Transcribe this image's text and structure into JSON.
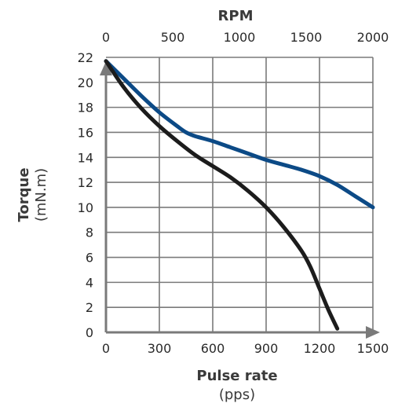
{
  "chart_data": {
    "type": "line",
    "top_axis": {
      "title": "RPM",
      "ticks": [
        "0",
        "500",
        "1000",
        "1500",
        "2000"
      ],
      "range": [
        0,
        2000
      ]
    },
    "x_axis": {
      "title": "Pulse rate",
      "unit": "(pps)",
      "ticks": [
        "0",
        "300",
        "600",
        "900",
        "1200",
        "1500"
      ],
      "range": [
        0,
        1500
      ]
    },
    "y_axis": {
      "title": "Torque",
      "unit": "(mN.m)",
      "ticks": [
        "0",
        "2",
        "4",
        "6",
        "8",
        "10",
        "12",
        "14",
        "16",
        "18",
        "20",
        "22"
      ],
      "range": [
        0,
        22
      ]
    },
    "grid": true,
    "series": [
      {
        "color": "#0c4a86",
        "x": [
          0,
          100,
          200,
          300,
          400,
          450,
          500,
          600,
          700,
          800,
          900,
          1000,
          1100,
          1200,
          1300,
          1400,
          1500
        ],
        "y": [
          21.7,
          20.3,
          18.9,
          17.6,
          16.5,
          16.0,
          15.7,
          15.3,
          14.8,
          14.3,
          13.8,
          13.4,
          13.0,
          12.5,
          11.8,
          10.9,
          10.0
        ]
      },
      {
        "color": "#1c1c1c",
        "x": [
          0,
          100,
          200,
          300,
          400,
          500,
          600,
          700,
          800,
          900,
          1000,
          1100,
          1150,
          1200,
          1250,
          1300
        ],
        "y": [
          21.7,
          19.6,
          17.9,
          16.5,
          15.3,
          14.2,
          13.3,
          12.4,
          11.3,
          10.0,
          8.4,
          6.5,
          5.2,
          3.5,
          1.8,
          0.3
        ]
      }
    ]
  }
}
